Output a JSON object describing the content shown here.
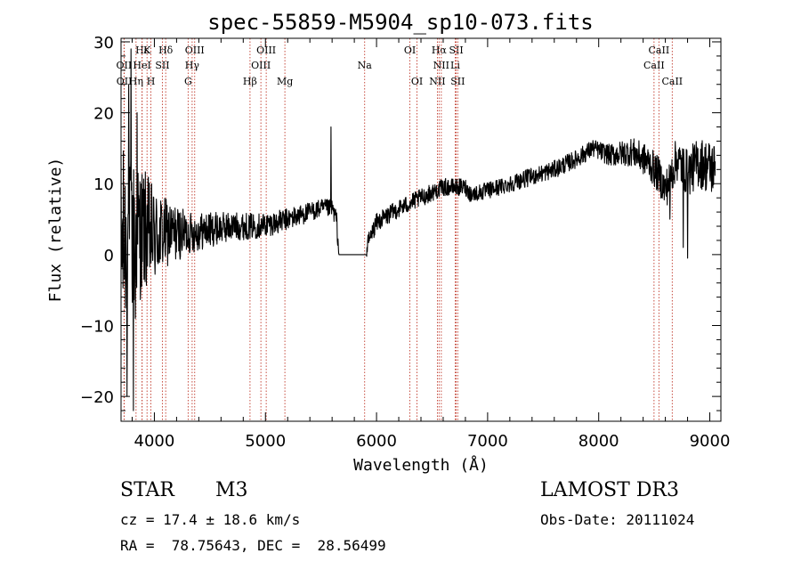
{
  "chart_data": {
    "type": "line",
    "title": "spec-55859-M5904_sp10-073.fits",
    "xlabel": "Wavelength (Å)",
    "ylabel": "Flux (relative)",
    "xlim": [
      3700,
      9100
    ],
    "ylim": [
      -23.5,
      30.5
    ],
    "xticks": [
      4000,
      5000,
      6000,
      7000,
      8000,
      9000
    ],
    "yticks": [
      -20,
      -10,
      0,
      10,
      20,
      30
    ],
    "ytick_labels": [
      "−20",
      "−10",
      "0",
      "10",
      "20",
      "30"
    ],
    "lines": [
      {
        "label": "Hε",
        "wavelength": 3890,
        "row": 0
      },
      {
        "label": "K",
        "wavelength": 3934,
        "row": 0
      },
      {
        "label": "Hδ",
        "wavelength": 4102,
        "row": 0
      },
      {
        "label": "OIII",
        "wavelength": 4363,
        "row": 0
      },
      {
        "label": "OIII",
        "wavelength": 5007,
        "row": 0
      },
      {
        "label": "OI",
        "wavelength": 6300,
        "row": 0
      },
      {
        "label": "Hα",
        "wavelength": 6563,
        "row": 0
      },
      {
        "label": "SII",
        "wavelength": 6717,
        "row": 0
      },
      {
        "label": "CaII",
        "wavelength": 8542,
        "row": 0
      },
      {
        "label": "OII",
        "wavelength": 3727,
        "row": 1
      },
      {
        "label": "HeI",
        "wavelength": 3889,
        "row": 1
      },
      {
        "label": "SII",
        "wavelength": 4072,
        "row": 1
      },
      {
        "label": "Hγ",
        "wavelength": 4340,
        "row": 1
      },
      {
        "label": "OIII",
        "wavelength": 4959,
        "row": 1
      },
      {
        "label": "NII",
        "wavelength": 6583,
        "row": 1
      },
      {
        "label": "Li",
        "wavelength": 6708,
        "row": 1
      },
      {
        "label": "CaII",
        "wavelength": 8498,
        "row": 1
      },
      {
        "label": "OII",
        "wavelength": 3729,
        "row": 2
      },
      {
        "label": "Hη",
        "wavelength": 3835,
        "row": 2
      },
      {
        "label": "H",
        "wavelength": 3969,
        "row": 2
      },
      {
        "label": "G",
        "wavelength": 4304,
        "row": 2
      },
      {
        "label": "Hβ",
        "wavelength": 4861,
        "row": 2
      },
      {
        "label": "Mg",
        "wavelength": 5175,
        "row": 2
      },
      {
        "label": "Na",
        "wavelength": 5893,
        "row": 1
      },
      {
        "label": "OI",
        "wavelength": 6364,
        "row": 2
      },
      {
        "label": "NII",
        "wavelength": 6548,
        "row": 2
      },
      {
        "label": "SII",
        "wavelength": 6731,
        "row": 2
      },
      {
        "label": "CaII",
        "wavelength": 8662,
        "row": 2
      }
    ],
    "spectrum_anchors": {
      "x": [
        3700,
        3800,
        3900,
        4000,
        4100,
        4300,
        4500,
        4700,
        4900,
        5100,
        5300,
        5500,
        5600,
        5640,
        5660,
        5900,
        5930,
        6000,
        6200,
        6400,
        6600,
        6800,
        6850,
        7000,
        7200,
        7600,
        7800,
        7950,
        8100,
        8300,
        8450,
        8550,
        8600,
        8700,
        8800,
        8900,
        9050
      ],
      "y": [
        1.5,
        2.5,
        3.5,
        2.5,
        3.0,
        3.0,
        3.5,
        4.0,
        4.0,
        4.5,
        5.5,
        6.5,
        6.5,
        5.0,
        0.0,
        0.0,
        2.0,
        4.5,
        6.5,
        8.0,
        9.5,
        9.5,
        8.5,
        9.0,
        10.0,
        12.0,
        13.5,
        15.0,
        14.0,
        14.5,
        13.0,
        11.0,
        9.0,
        13.5,
        11.5,
        13.0,
        12.0
      ]
    },
    "spectrum_noise": {
      "x": [
        3700,
        3900,
        4100,
        4300,
        4700,
        5500,
        6000,
        7000,
        8000,
        8500,
        9050
      ],
      "amp": [
        14,
        9,
        5,
        3,
        2,
        1.3,
        1.3,
        1.2,
        1.3,
        2.5,
        4
      ]
    },
    "spikes": [
      {
        "x": 3755,
        "y": -20
      },
      {
        "x": 3770,
        "y": 24
      },
      {
        "x": 3790,
        "y": 29
      },
      {
        "x": 3810,
        "y": -22
      },
      {
        "x": 3830,
        "y": -9
      },
      {
        "x": 3845,
        "y": 20
      },
      {
        "x": 5590,
        "y": 18
      },
      {
        "x": 8640,
        "y": 5
      },
      {
        "x": 8760,
        "y": 1
      },
      {
        "x": 8800,
        "y": -0.5
      }
    ],
    "gap": [
      5660,
      5910
    ]
  },
  "footer": {
    "object_class": "STAR",
    "subclass": "M3",
    "survey": "LAMOST DR3",
    "redshift_text": "cz = 17.4 ± 18.6 km/s",
    "obs_date_text": "Obs-Date: 20111024",
    "coords_text": "RA =  78.75643, DEC =  28.56499"
  }
}
